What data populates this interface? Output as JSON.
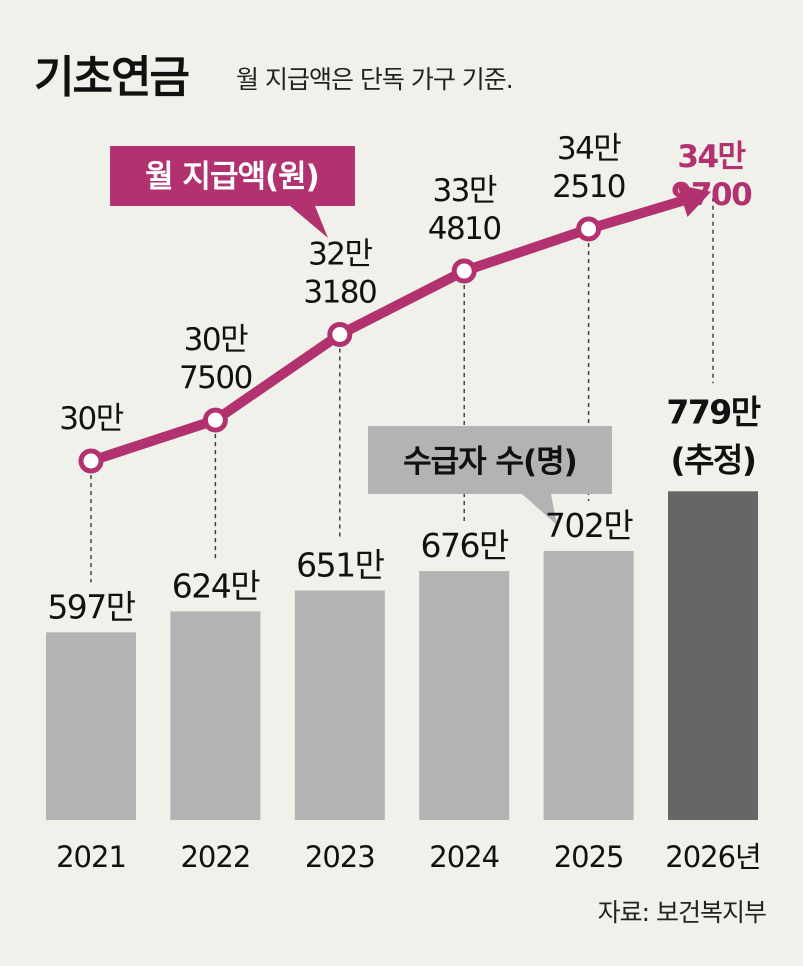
{
  "title": "기초연금",
  "subtitle": "월 지급액은 단독 가구 기준.",
  "source": "자료: 보건복지부",
  "colors": {
    "background": "#f1f1ec",
    "line": "#b2316f",
    "bar": "#b3b3b3",
    "bar_highlight": "#666666",
    "label_box_pension": "#b2316f",
    "label_box_recipients": "#b3b3b3"
  },
  "chart_data": {
    "type": "bar+line",
    "categories": [
      "2021",
      "2022",
      "2023",
      "2024",
      "2025",
      "2026년"
    ],
    "legend": {
      "pension_label": "월 지급액(원)",
      "recipients_label": "수급자 수(명)"
    },
    "series": [
      {
        "name": "월 지급액(원)",
        "type": "line",
        "values": [
          300000,
          307500,
          323180,
          334810,
          342510,
          349700
        ],
        "labels": [
          [
            "30만"
          ],
          [
            "30만",
            "7500"
          ],
          [
            "32만",
            "3180"
          ],
          [
            "33만",
            "4810"
          ],
          [
            "34만",
            "2510"
          ],
          [
            "34만",
            "9700"
          ]
        ]
      },
      {
        "name": "수급자 수(명)",
        "type": "bar",
        "values": [
          5970000,
          6240000,
          6510000,
          6760000,
          7020000,
          7790000
        ],
        "labels": [
          "597만",
          "624만",
          "651만",
          "676만",
          "702만",
          "779만"
        ],
        "note_last": "(추정)"
      }
    ]
  }
}
